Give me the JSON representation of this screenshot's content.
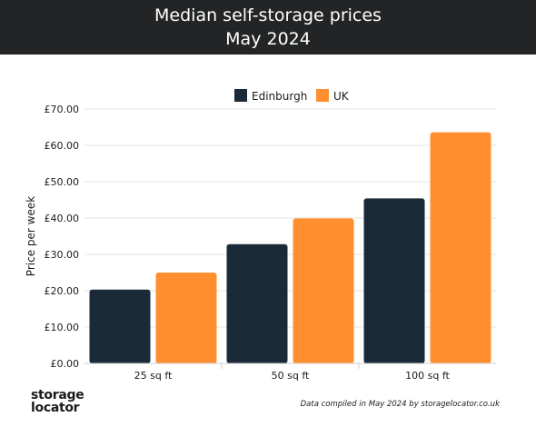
{
  "header": {
    "title": "Median self-storage prices",
    "subtitle": "May 2024"
  },
  "logo": {
    "line1": "storage",
    "line2": "locator"
  },
  "footnote": "Data compiled in May 2024 by storagelocator.co.uk",
  "chart_data": {
    "type": "bar",
    "categories": [
      "25 sq ft",
      "50 sq ft",
      "100 sq ft"
    ],
    "series": [
      {
        "name": "Edinburgh",
        "color": "#1b2a38",
        "values": [
          20.3,
          32.8,
          45.4
        ]
      },
      {
        "name": "UK",
        "color": "#ff8f2e",
        "values": [
          25.0,
          39.9,
          63.6
        ]
      }
    ],
    "ylabel": "Price per week",
    "ylim": [
      0,
      70
    ],
    "yticks": [
      0,
      10,
      20,
      30,
      40,
      50,
      60,
      70
    ],
    "ytick_labels": [
      "£0.00",
      "£10.00",
      "£20.00",
      "£30.00",
      "£40.00",
      "£50.00",
      "£60.00",
      "£70.00"
    ],
    "grid": true,
    "legend_position": "top-center"
  }
}
